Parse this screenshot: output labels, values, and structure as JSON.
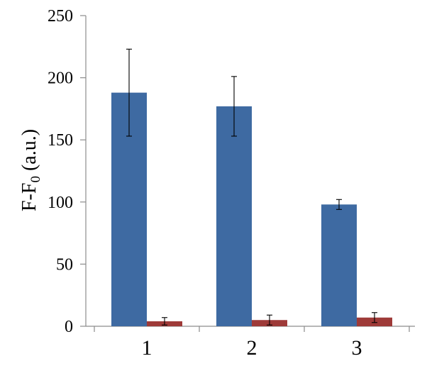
{
  "chart_data": {
    "type": "bar",
    "title": "",
    "xlabel": "",
    "ylabel": "F-F",
    "ylabel_subscript": "0",
    "ylabel_suffix": " (a.u.)",
    "categories": [
      "1",
      "2",
      "3"
    ],
    "ylim": [
      0,
      250
    ],
    "yticks": [
      "0",
      "50",
      "100",
      "150",
      "200",
      "250"
    ],
    "grid": false,
    "legend": "none",
    "series": [
      {
        "color": "#3E6AA2",
        "values": [
          188,
          177,
          98
        ],
        "error": [
          [
            153,
            223
          ],
          [
            153,
            201
          ],
          [
            94,
            102
          ]
        ]
      },
      {
        "color": "#9E3A38",
        "values": [
          4,
          5,
          7
        ],
        "error": [
          [
            1,
            7
          ],
          [
            1,
            9
          ],
          [
            3,
            11
          ]
        ]
      }
    ]
  }
}
